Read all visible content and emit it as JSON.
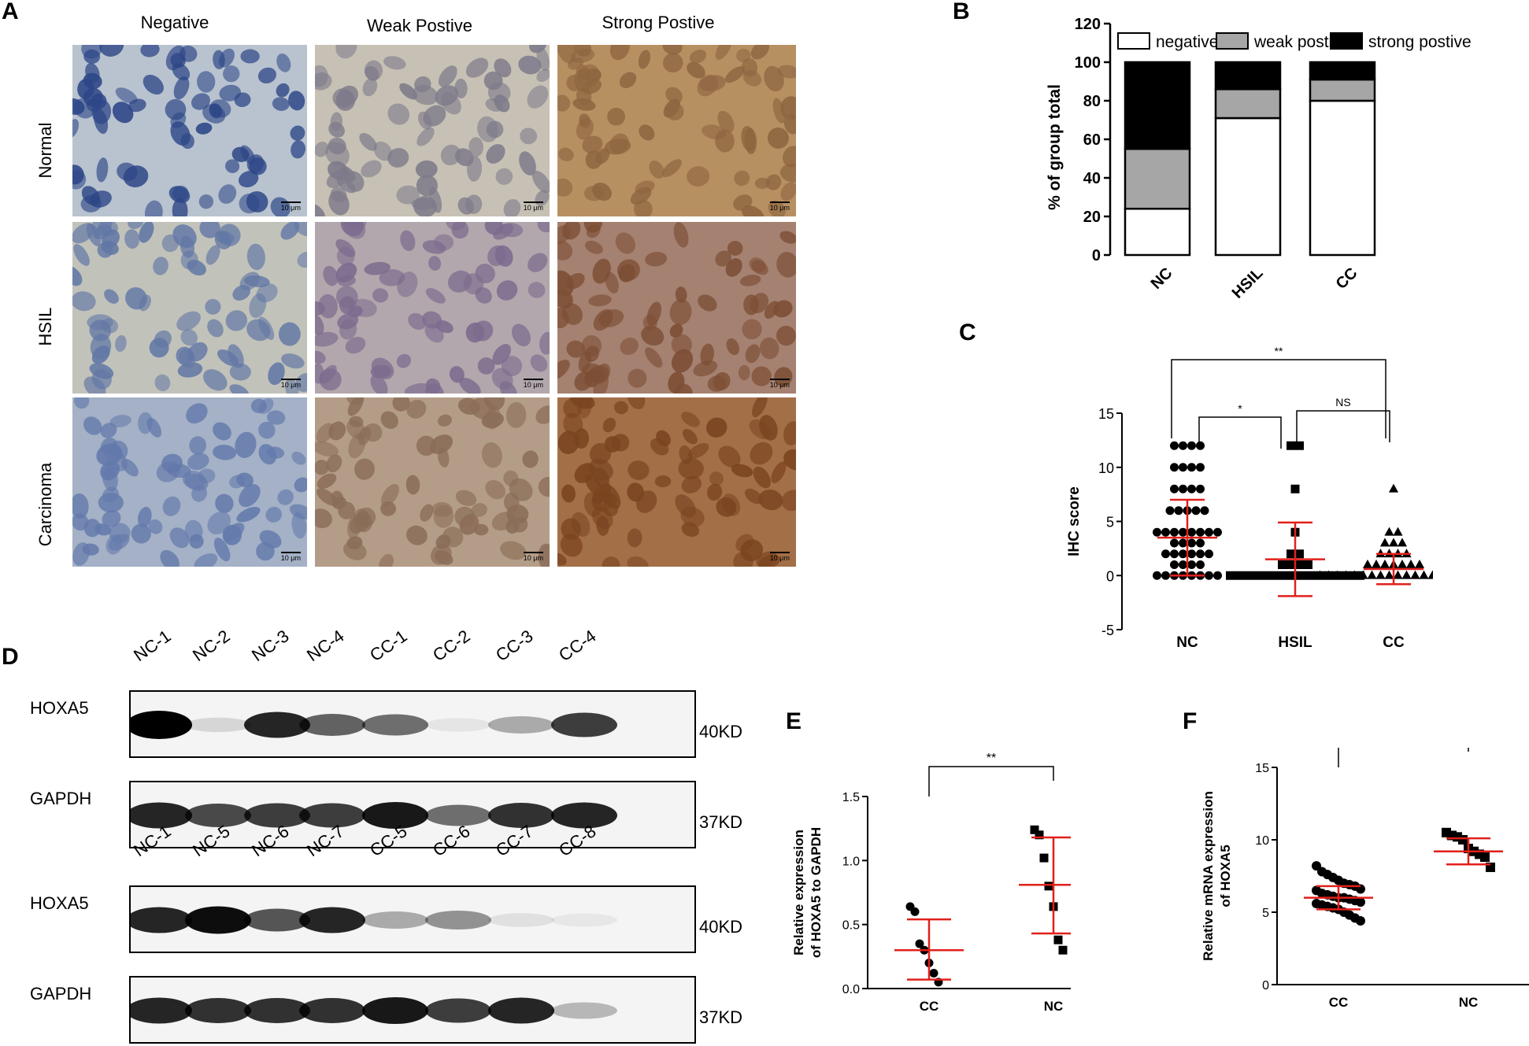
{
  "panelA": {
    "label": "A",
    "columns": [
      "Negative",
      "Weak Postive",
      "Strong Postive"
    ],
    "rows": [
      "Normal",
      "HSIL",
      "Carcinoma"
    ],
    "scale_bar": "10 μm",
    "tile_colors": [
      [
        "#b8c3cf",
        "#c6c1b4",
        "#b79062"
      ],
      [
        "#c1c2ba",
        "#b2a7ac",
        "#a58171"
      ],
      [
        "#a4b1c6",
        "#b49d88",
        "#a36f47"
      ]
    ],
    "nuclei_colors": [
      [
        "#2d4687",
        "#7e7a8a",
        "#8d6540"
      ],
      [
        "#6277a5",
        "#7c6b8e",
        "#7c4e34"
      ],
      [
        "#6379ab",
        "#8a6d58",
        "#7a4420"
      ]
    ]
  },
  "panelB": {
    "label": "B",
    "chart_data": {
      "type": "bar",
      "stacked": true,
      "categories": [
        "NC",
        "HSIL",
        "CC"
      ],
      "series": [
        {
          "name": "negative",
          "values": [
            24,
            71,
            80
          ],
          "color": "#ffffff"
        },
        {
          "name": "weak postive",
          "values": [
            31,
            15,
            11
          ],
          "color": "#a6a6a6"
        },
        {
          "name": "strong postive",
          "values": [
            45,
            14,
            9
          ],
          "color": "#000000"
        }
      ],
      "ylabel": "% of group total",
      "ylim": [
        0,
        120
      ],
      "yticks": [
        0,
        20,
        40,
        60,
        80,
        100,
        120
      ],
      "legend": "top"
    }
  },
  "panelC": {
    "label": "C",
    "chart_data": {
      "type": "scatter",
      "categories": [
        "NC",
        "HSIL",
        "CC"
      ],
      "ylabel": "IHC score",
      "ylim": [
        -5,
        15
      ],
      "yticks": [
        -5,
        0,
        5,
        10,
        15
      ],
      "groups": [
        {
          "name": "NC",
          "marker": "circle",
          "mean": 3.5,
          "sd_low": 0,
          "sd_high": 7,
          "values": [
            12,
            12,
            12,
            12,
            10,
            10,
            10,
            10,
            8,
            8,
            8,
            8,
            6,
            6,
            6,
            6,
            6,
            4,
            4,
            4,
            4,
            4,
            4,
            4,
            4,
            3,
            3,
            3,
            3,
            2,
            2,
            2,
            2,
            2,
            2,
            1,
            1,
            1,
            1,
            0,
            0,
            0,
            0,
            0,
            0,
            0,
            0
          ]
        },
        {
          "name": "HSIL",
          "marker": "square",
          "mean": 1.5,
          "sd_low": -1.9,
          "sd_high": 4.9,
          "values": [
            12,
            12,
            8,
            4,
            2,
            2,
            1,
            1,
            1,
            1,
            0,
            0,
            0,
            0,
            0,
            0,
            0,
            0,
            0,
            0,
            0,
            0,
            0,
            0,
            0,
            0
          ]
        },
        {
          "name": "CC",
          "marker": "triangle",
          "mean": 0.6,
          "sd_low": -0.8,
          "sd_high": 2,
          "values": [
            8,
            4,
            4,
            3,
            3,
            3,
            2,
            2,
            2,
            2,
            1,
            1,
            1,
            1,
            1,
            1,
            1,
            0,
            0,
            0,
            0,
            0,
            0,
            0,
            0,
            0,
            0,
            0,
            0,
            0,
            0,
            0,
            0,
            0,
            0
          ]
        }
      ],
      "comparisons": [
        {
          "from": "NC",
          "to": "HSIL",
          "label": "*"
        },
        {
          "from": "HSIL",
          "to": "CC",
          "label": "NS"
        },
        {
          "from": "NC",
          "to": "CC",
          "label": "**"
        }
      ]
    }
  },
  "panelD": {
    "label": "D",
    "blot1": {
      "lanes": [
        "NC-1",
        "NC-2",
        "NC-3",
        "NC-4",
        "CC-1",
        "CC-2",
        "CC-3",
        "CC-4"
      ],
      "hoxa5": [
        1.0,
        0.12,
        0.85,
        0.6,
        0.55,
        0.06,
        0.3,
        0.75
      ],
      "gapdh": [
        0.85,
        0.7,
        0.75,
        0.75,
        0.9,
        0.55,
        0.8,
        0.85
      ]
    },
    "blot2": {
      "lanes": [
        "NC-1",
        "NC-5",
        "NC-6",
        "NC-7",
        "CC-5",
        "CC-6",
        "CC-7",
        "CC-8"
      ],
      "hoxa5": [
        0.85,
        0.95,
        0.65,
        0.85,
        0.3,
        0.4,
        0.08,
        0.04
      ],
      "gapdh": [
        0.85,
        0.8,
        0.8,
        0.8,
        0.9,
        0.75,
        0.85,
        0.25
      ]
    },
    "hoxa5_label": "HOXA5",
    "gapdh_label": "GAPDH",
    "hoxa5_kd": "40KD",
    "gapdh_kd": "37KD"
  },
  "panelE": {
    "label": "E",
    "chart_data": {
      "type": "scatter",
      "categories": [
        "CC",
        "NC"
      ],
      "ylabel_line1": "Relative expression",
      "ylabel_line2": "of HOXA5 to GAPDH",
      "ylim": [
        0,
        1.5
      ],
      "yticks": [
        "0.0",
        "0.5",
        "1.0",
        "1.5"
      ],
      "groups": [
        {
          "name": "CC",
          "mean": 0.3,
          "sd_low": 0.07,
          "sd_high": 0.54,
          "values": [
            0.64,
            0.6,
            0.35,
            0.3,
            0.2,
            0.12,
            0.05
          ]
        },
        {
          "name": "NC",
          "mean": 0.81,
          "sd_low": 0.43,
          "sd_high": 1.18,
          "values": [
            1.24,
            1.2,
            1.02,
            0.8,
            0.64,
            0.38,
            0.3
          ]
        }
      ],
      "comparison": "**"
    }
  },
  "panelF": {
    "label": "F",
    "chart_data": {
      "type": "scatter",
      "categories": [
        "CC",
        "NC"
      ],
      "ylabel_line1": "Relative mRNA expression",
      "ylabel_line2": "of HOXA5",
      "ylim": [
        0,
        15
      ],
      "yticks": [
        "0",
        "5",
        "10",
        "15"
      ],
      "groups": [
        {
          "name": "CC",
          "mean": 6.0,
          "sd_low": 5.2,
          "sd_high": 6.8,
          "values": [
            8.2,
            7.8,
            7.6,
            7.4,
            7.2,
            7.0,
            6.9,
            6.8,
            6.6,
            6.5,
            6.3,
            6.2,
            6.1,
            6.0,
            6.0,
            5.9,
            5.8,
            5.7,
            5.6,
            5.5,
            5.4,
            5.3,
            5.2,
            5.0,
            4.8,
            4.6,
            4.4
          ]
        },
        {
          "name": "NC",
          "mean": 9.2,
          "sd_low": 8.3,
          "sd_high": 10.1,
          "values": [
            10.5,
            10.3,
            10.2,
            10.0,
            9.4,
            9.2,
            9.0,
            8.8,
            8.1
          ]
        }
      ],
      "comparison": "***"
    }
  }
}
